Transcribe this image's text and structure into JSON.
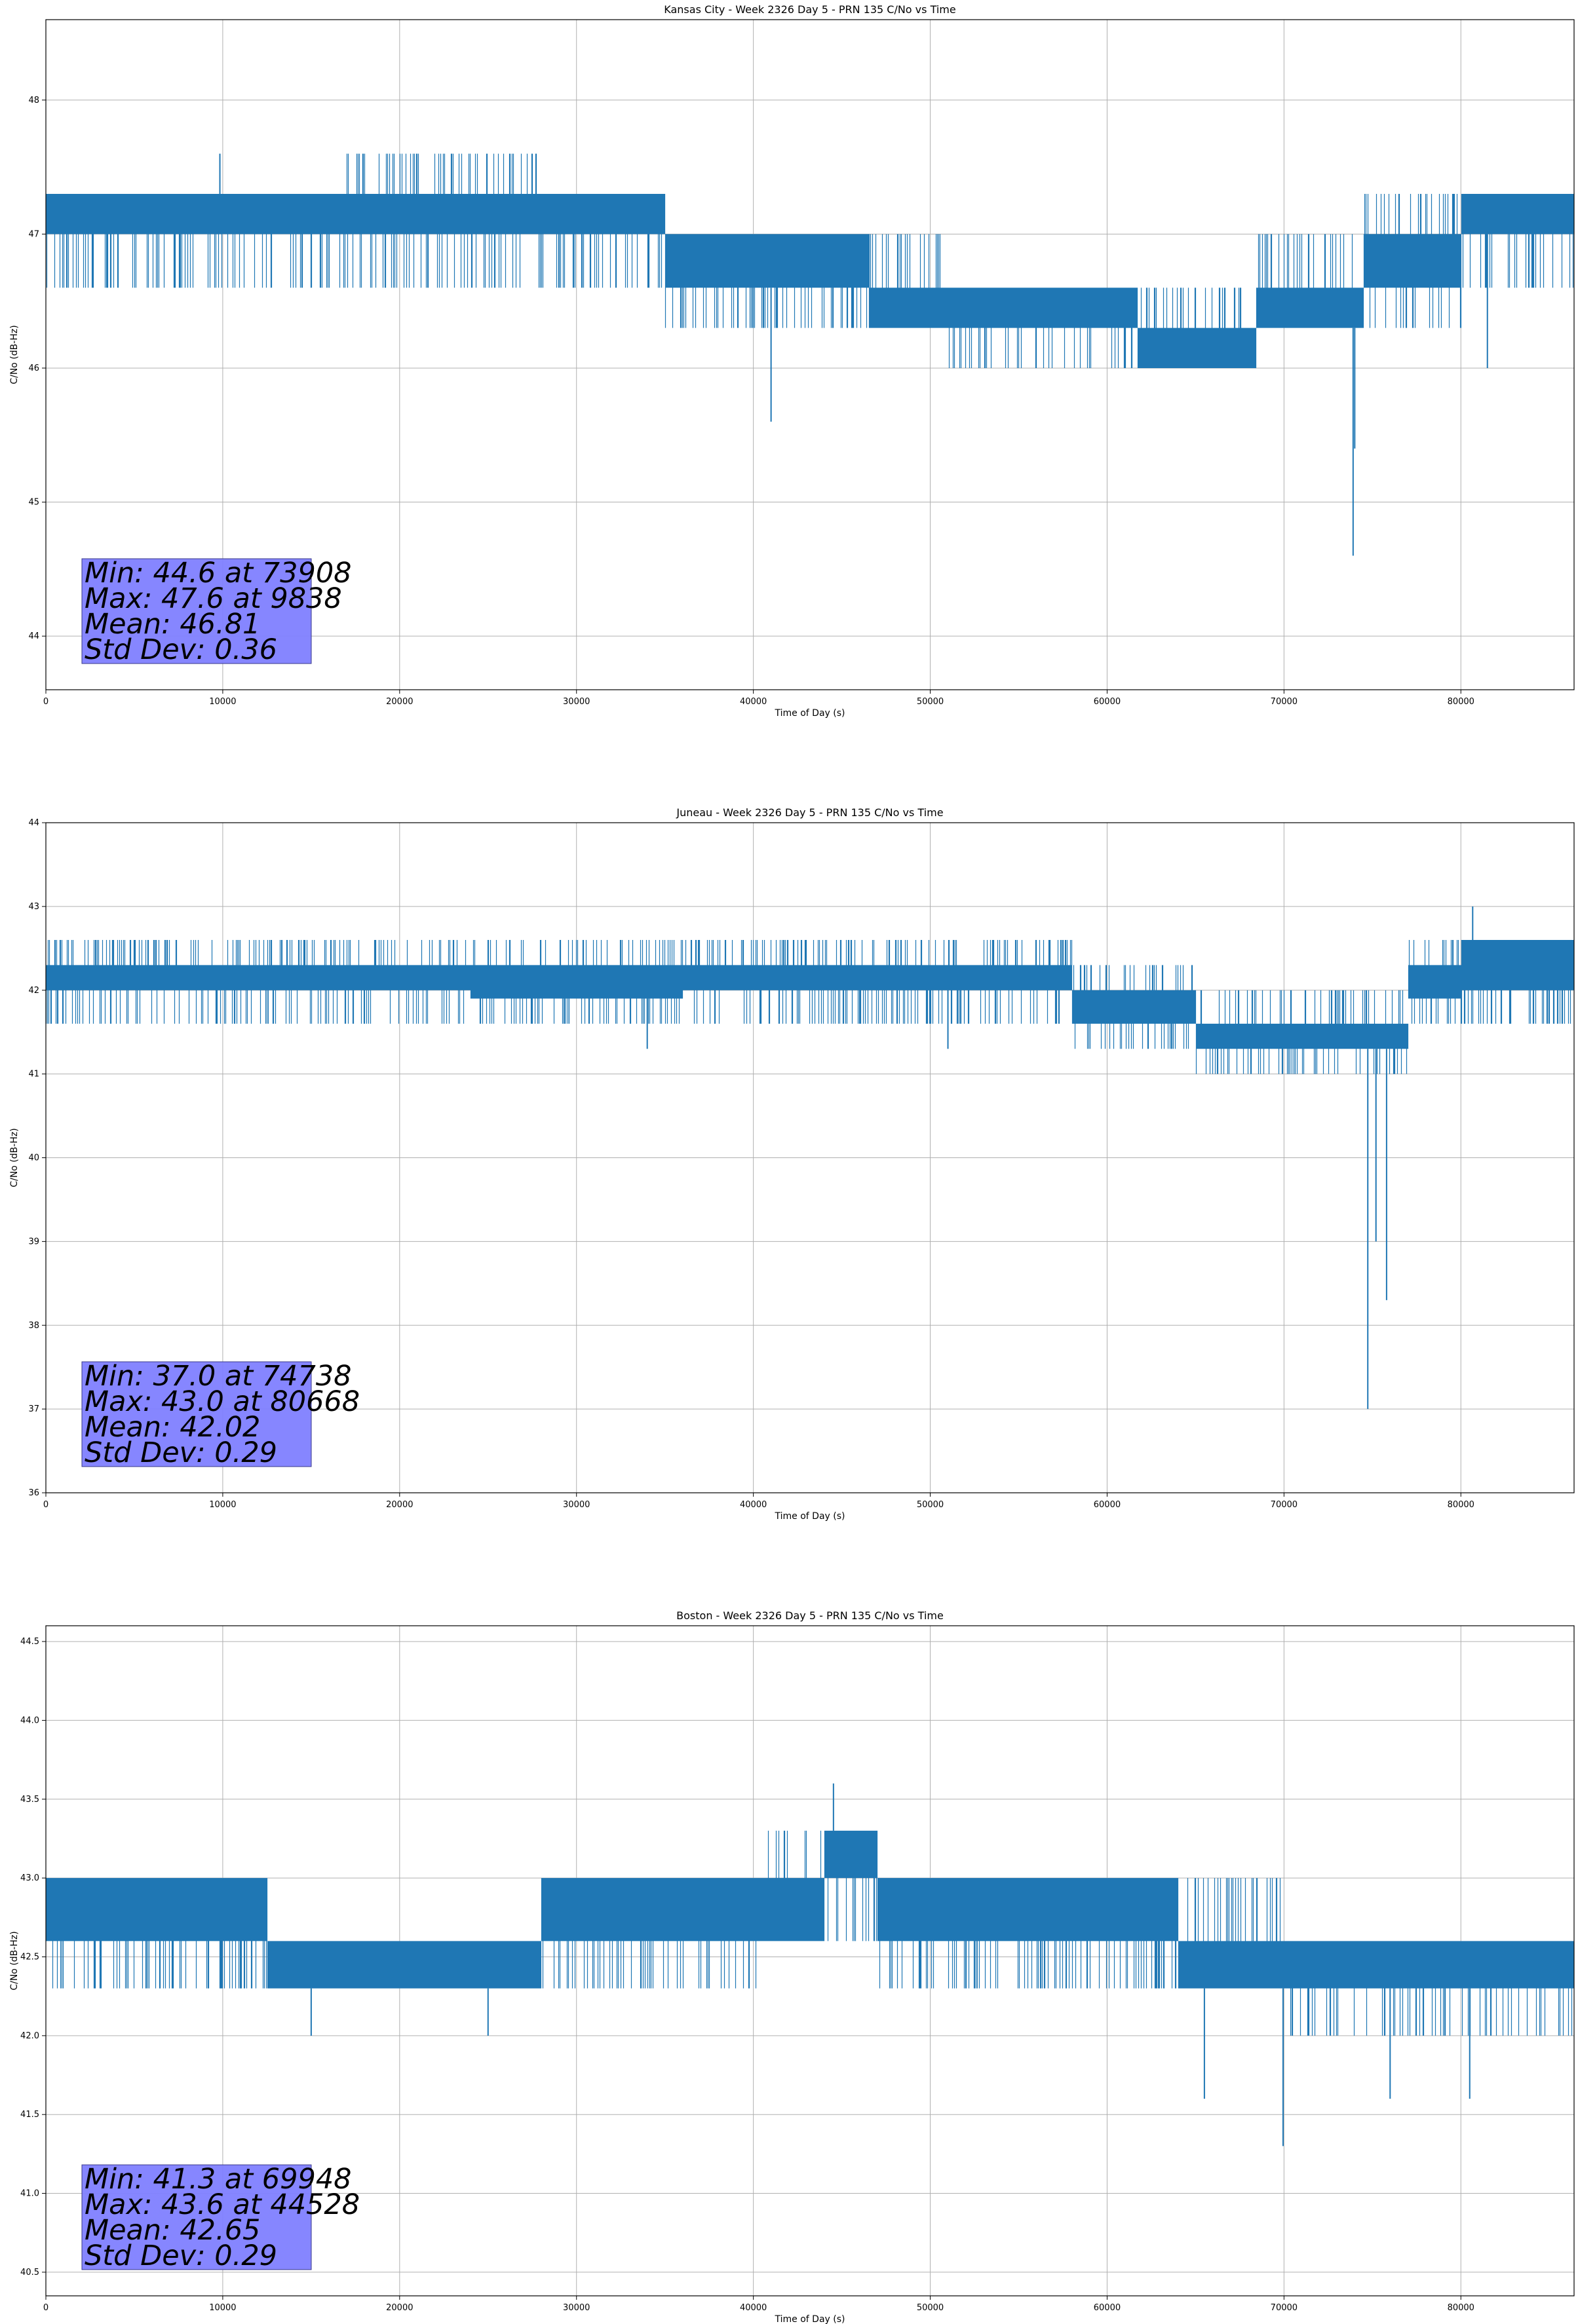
{
  "chart_data": [
    {
      "type": "line",
      "title": "Kansas City - Week 2326 Day 5 - PRN 135 C/No vs Time",
      "xlabel": "Time of Day (s)",
      "ylabel": "C/No (dB-Hz)",
      "xlim": [
        0,
        86400
      ],
      "ylim": [
        43.6,
        48.6
      ],
      "xticks": [
        0,
        10000,
        20000,
        30000,
        40000,
        50000,
        60000,
        70000,
        80000
      ],
      "yticks": [
        44,
        45,
        46,
        47,
        48
      ],
      "ytick_labels": [
        "44",
        "45",
        "46",
        "47",
        "48"
      ],
      "grid": true,
      "line_color": "#1f77b4",
      "series": [
        {
          "band_segments": [
            {
              "x": [
                0,
                17000
              ],
              "low": 46.6,
              "high": 47.3,
              "core": [
                47.0,
                47.3
              ]
            },
            {
              "x": [
                17000,
                28000
              ],
              "low": 46.6,
              "high": 47.6,
              "core": [
                47.0,
                47.3
              ]
            },
            {
              "x": [
                28000,
                35000
              ],
              "low": 46.6,
              "high": 47.3,
              "core": [
                47.0,
                47.3
              ]
            },
            {
              "x": [
                35000,
                46500
              ],
              "low": 46.3,
              "high": 47.0,
              "core": [
                46.6,
                47.0
              ]
            },
            {
              "x": [
                46500,
                51000
              ],
              "low": 46.3,
              "high": 47.0,
              "core": [
                46.3,
                46.6
              ]
            },
            {
              "x": [
                51000,
                61700
              ],
              "low": 46.0,
              "high": 46.6,
              "core": [
                46.3,
                46.6
              ]
            },
            {
              "x": [
                61700,
                68400
              ],
              "low": 46.0,
              "high": 46.6,
              "core": [
                46.0,
                46.3
              ]
            },
            {
              "x": [
                68400,
                74500
              ],
              "low": 46.3,
              "high": 47.0,
              "core": [
                46.3,
                46.6
              ]
            },
            {
              "x": [
                74500,
                80000
              ],
              "low": 46.3,
              "high": 47.3,
              "core": [
                46.6,
                47.0
              ]
            },
            {
              "x": [
                80000,
                86400
              ],
              "low": 46.6,
              "high": 47.3,
              "core": [
                47.0,
                47.3
              ]
            }
          ],
          "spikes": [
            {
              "x": 9838,
              "y": 47.6
            },
            {
              "x": 41000,
              "y": 45.6
            },
            {
              "x": 73908,
              "y": 44.6
            },
            {
              "x": 74000,
              "y": 45.4
            },
            {
              "x": 81500,
              "y": 46.0
            }
          ]
        }
      ],
      "stats": {
        "min": "Min: 44.6 at 73908",
        "max": "Max: 47.6 at 9838",
        "mean": "Mean: 46.81",
        "std": "Std Dev: 0.36"
      },
      "stats_box_color": "#8080ff"
    },
    {
      "type": "line",
      "title": "Juneau - Week 2326 Day 5 - PRN 135 C/No vs Time",
      "xlabel": "Time of Day (s)",
      "ylabel": "C/No (dB-Hz)",
      "xlim": [
        0,
        86400
      ],
      "ylim": [
        36,
        44
      ],
      "xticks": [
        0,
        10000,
        20000,
        30000,
        40000,
        50000,
        60000,
        70000,
        80000
      ],
      "yticks": [
        36,
        37,
        38,
        39,
        40,
        41,
        42,
        43,
        44
      ],
      "ytick_labels": [
        "36",
        "37",
        "38",
        "39",
        "40",
        "41",
        "42",
        "43",
        "44"
      ],
      "grid": true,
      "line_color": "#1f77b4",
      "series": [
        {
          "band_segments": [
            {
              "x": [
                0,
                24000
              ],
              "low": 41.6,
              "high": 42.6,
              "core": [
                42.0,
                42.3
              ]
            },
            {
              "x": [
                24000,
                36000
              ],
              "low": 41.6,
              "high": 42.6,
              "core": [
                41.9,
                42.3
              ]
            },
            {
              "x": [
                36000,
                58000
              ],
              "low": 41.6,
              "high": 42.6,
              "core": [
                42.0,
                42.3
              ]
            },
            {
              "x": [
                58000,
                65000
              ],
              "low": 41.3,
              "high": 42.3,
              "core": [
                41.6,
                42.0
              ]
            },
            {
              "x": [
                65000,
                77000
              ],
              "low": 41.0,
              "high": 42.0,
              "core": [
                41.3,
                41.6
              ]
            },
            {
              "x": [
                77000,
                80000
              ],
              "low": 41.6,
              "high": 42.6,
              "core": [
                41.9,
                42.3
              ]
            },
            {
              "x": [
                80000,
                86400
              ],
              "low": 41.6,
              "high": 42.6,
              "core": [
                42.0,
                42.6
              ]
            }
          ],
          "spikes": [
            {
              "x": 74738,
              "y": 37.0
            },
            {
              "x": 75200,
              "y": 39.0
            },
            {
              "x": 75800,
              "y": 38.3
            },
            {
              "x": 80668,
              "y": 43.0
            },
            {
              "x": 34000,
              "y": 41.3
            },
            {
              "x": 51000,
              "y": 41.3
            }
          ]
        }
      ],
      "stats": {
        "min": "Min: 37.0 at 74738",
        "max": "Max: 43.0 at 80668",
        "mean": "Mean: 42.02",
        "std": "Std Dev: 0.29"
      },
      "stats_box_color": "#8080ff"
    },
    {
      "type": "line",
      "title": "Boston - Week 2326 Day 5 - PRN 135 C/No vs Time",
      "xlabel": "Time of Day (s)",
      "ylabel": "C/No (dB-Hz)",
      "xlim": [
        0,
        86400
      ],
      "ylim": [
        40.35,
        44.6
      ],
      "xticks": [
        0,
        10000,
        20000,
        30000,
        40000,
        50000,
        60000,
        70000,
        80000
      ],
      "yticks": [
        40.5,
        41.0,
        41.5,
        42.0,
        42.5,
        43.0,
        43.5,
        44.0,
        44.5
      ],
      "ytick_labels": [
        "40.5",
        "41.0",
        "41.5",
        "42.0",
        "42.5",
        "43.0",
        "43.5",
        "44.0",
        "44.5"
      ],
      "grid": true,
      "line_color": "#1f77b4",
      "series": [
        {
          "band_segments": [
            {
              "x": [
                0,
                12500
              ],
              "low": 42.3,
              "high": 43.0,
              "core": [
                42.6,
                43.0
              ]
            },
            {
              "x": [
                12500,
                28000
              ],
              "low": 42.3,
              "high": 42.6,
              "core": [
                42.3,
                42.6
              ]
            },
            {
              "x": [
                28000,
                40500
              ],
              "low": 42.3,
              "high": 43.0,
              "core": [
                42.6,
                43.0
              ]
            },
            {
              "x": [
                40500,
                44000
              ],
              "low": 42.6,
              "high": 43.3,
              "core": [
                42.6,
                43.0
              ]
            },
            {
              "x": [
                44000,
                47000
              ],
              "low": 42.6,
              "high": 43.3,
              "core": [
                43.0,
                43.3
              ]
            },
            {
              "x": [
                47000,
                64000
              ],
              "low": 42.3,
              "high": 43.0,
              "core": [
                42.6,
                43.0
              ]
            },
            {
              "x": [
                64000,
                70000
              ],
              "low": 42.3,
              "high": 43.0,
              "core": [
                42.3,
                42.6
              ]
            },
            {
              "x": [
                70000,
                86400
              ],
              "low": 42.0,
              "high": 42.6,
              "core": [
                42.3,
                42.6
              ]
            }
          ],
          "spikes": [
            {
              "x": 44528,
              "y": 43.6
            },
            {
              "x": 69948,
              "y": 41.3
            },
            {
              "x": 65500,
              "y": 41.6
            },
            {
              "x": 76000,
              "y": 41.6
            },
            {
              "x": 80500,
              "y": 41.6
            },
            {
              "x": 15000,
              "y": 42.0
            },
            {
              "x": 25000,
              "y": 42.0
            }
          ]
        }
      ],
      "stats": {
        "min": "Min: 41.3 at 69948",
        "max": "Max: 43.6 at 44528",
        "mean": "Mean: 42.65",
        "std": "Std Dev: 0.29"
      },
      "stats_box_color": "#8080ff"
    }
  ]
}
